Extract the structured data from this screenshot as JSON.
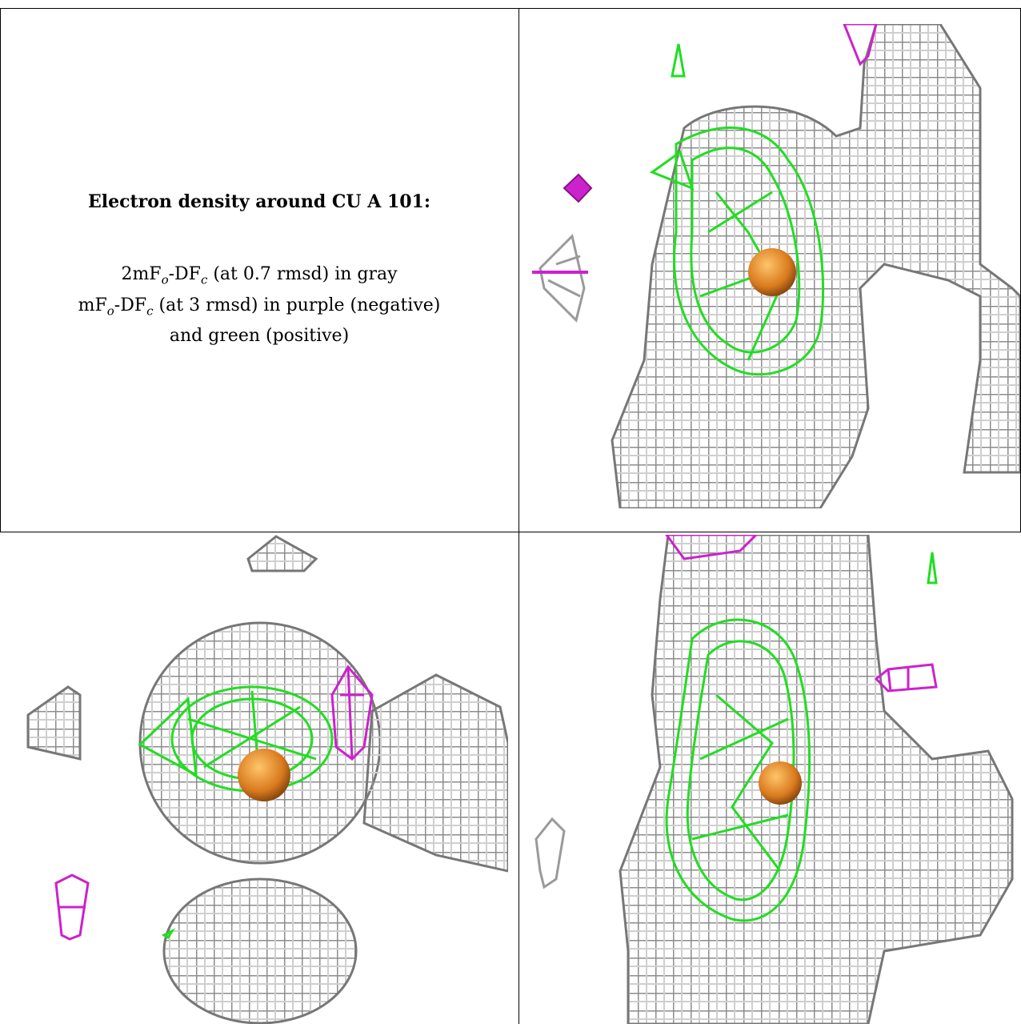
{
  "caption": {
    "title": "Electron density around CU A 101:",
    "line1_a": "2mF",
    "line1_sub1": "o",
    "line1_b": "-DF",
    "line1_sub2": "c",
    "line1_c": " (at 0.7 rmsd) in gray",
    "line2_a": "mF",
    "line2_sub1": "o",
    "line2_b": "-DF",
    "line2_sub2": "c",
    "line2_c": " (at 3 rmsd) in purple (negative)",
    "line3": "and green (positive)"
  },
  "colors": {
    "density_2fofc": "#9a9a9a",
    "density_2fofc_light": "#d4d4d4",
    "diff_positive": "#22dd22",
    "diff_negative": "#cc22cc",
    "copper_atom": "#e08a2a"
  },
  "panels": [
    {
      "name": "view-1",
      "atom": "CU A 101"
    },
    {
      "name": "view-2",
      "atom": "CU A 101"
    },
    {
      "name": "view-3",
      "atom": "CU A 101"
    }
  ]
}
